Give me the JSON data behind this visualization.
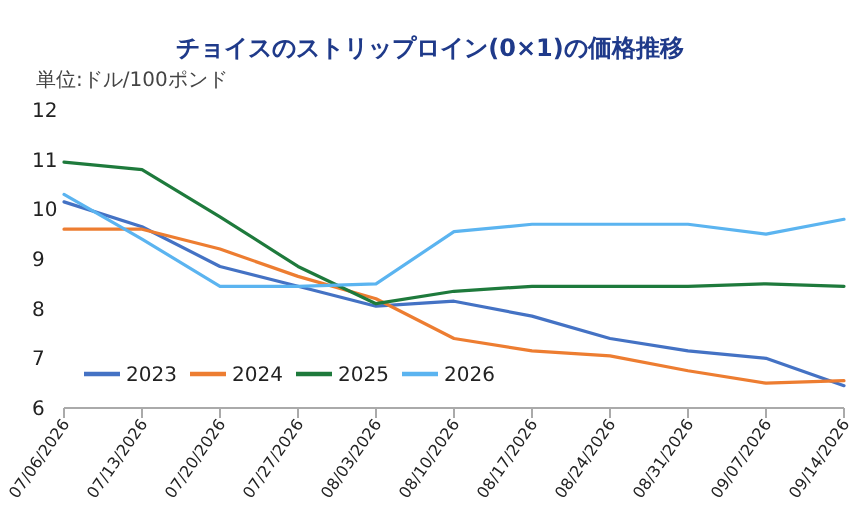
{
  "chart_data": {
    "type": "line",
    "title": "チョイスのストリップロイン(0×1)の価格推移",
    "subtitle": "単位:ドル/100ポンド",
    "categories": [
      "07/06/2026",
      "07/13/2026",
      "07/20/2026",
      "07/27/2026",
      "08/03/2026",
      "08/10/2026",
      "08/17/2026",
      "08/24/2026",
      "08/31/2026",
      "09/07/2026",
      "09/14/2026"
    ],
    "ylim": [
      6,
      12
    ],
    "yticks": [
      6,
      7,
      8,
      9,
      10,
      11,
      12
    ],
    "grid": false,
    "legend": "bottom left",
    "marker": "none",
    "line_style": "solid",
    "series": [
      {
        "name": "2023",
        "color": "#4472c4",
        "values": [
          10.15,
          9.65,
          8.85,
          8.45,
          8.05,
          8.15,
          7.85,
          7.4,
          7.15,
          7.0,
          6.45
        ]
      },
      {
        "name": "2024",
        "color": "#ed7d31",
        "values": [
          9.6,
          9.6,
          9.2,
          8.65,
          8.2,
          7.4,
          7.15,
          7.05,
          6.75,
          6.5,
          6.55
        ]
      },
      {
        "name": "2025",
        "color": "#1e7a3c",
        "values": [
          10.95,
          10.8,
          9.85,
          8.85,
          8.1,
          8.35,
          8.45,
          8.45,
          8.45,
          8.5,
          8.45
        ]
      },
      {
        "name": "2026",
        "color": "#5bb4f0",
        "values": [
          10.3,
          9.4,
          8.45,
          8.45,
          8.5,
          9.55,
          9.7,
          9.7,
          9.7,
          9.5,
          9.8
        ]
      }
    ]
  }
}
